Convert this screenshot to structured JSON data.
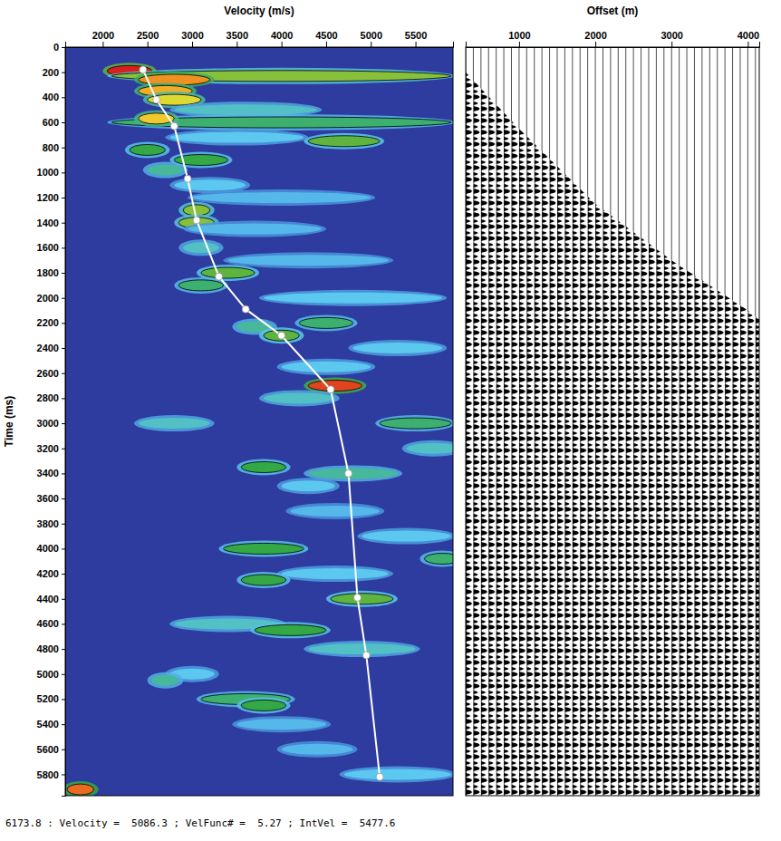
{
  "chart_data": [
    {
      "type": "heatmap",
      "x_label": "Velocity (m/s)",
      "y_label": "Time (ms)",
      "xlim": [
        1580,
        5920
      ],
      "xticks": [
        2000,
        2500,
        3000,
        3500,
        4000,
        4500,
        5000,
        5500
      ],
      "ylim": [
        0,
        5970
      ],
      "yticks": [
        0,
        200,
        400,
        600,
        800,
        1000,
        1200,
        1400,
        1600,
        1800,
        2000,
        2200,
        2400,
        2600,
        2800,
        3000,
        3200,
        3400,
        3600,
        3800,
        4000,
        4200,
        4400,
        4600,
        4800,
        5000,
        5200,
        5400,
        5600,
        5800
      ],
      "grid": false,
      "semblance_range": [
        0,
        1
      ],
      "cells": {
        "time": [
          190,
          230,
          260,
          350,
          420,
          500,
          600,
          570,
          750,
          720,
          820,
          900,
          980,
          1100,
          1200,
          1300,
          1400,
          1450,
          1600,
          1700,
          1800,
          1900,
          2000,
          2200,
          2230,
          2300,
          2400,
          2550,
          2700,
          2800,
          3000,
          3000,
          3200,
          3350,
          3400,
          3500,
          3700,
          3900,
          4000,
          4080,
          4200,
          4250,
          4400,
          4600,
          4650,
          4800,
          5000,
          5050,
          5200,
          5250,
          5400,
          5600,
          5800,
          5920
        ],
        "velocity": [
          2300,
          4000,
          2800,
          2700,
          2800,
          3600,
          4000,
          2600,
          4700,
          3500,
          2500,
          3100,
          2700,
          3200,
          4000,
          3050,
          3050,
          3700,
          3100,
          4300,
          3400,
          3100,
          4800,
          4500,
          3700,
          4000,
          5300,
          4500,
          4600,
          4200,
          2800,
          5500,
          5700,
          3800,
          4800,
          4300,
          4600,
          5400,
          3800,
          5800,
          4600,
          3800,
          4900,
          3400,
          4100,
          4900,
          3000,
          2700,
          3600,
          3800,
          4000,
          4400,
          5300,
          1750
        ],
        "span": [
          500,
          3800,
          800,
          600,
          600,
          1600,
          3800,
          400,
          800,
          1500,
          400,
          600,
          400,
          800,
          2000,
          300,
          400,
          1500,
          400,
          1800,
          600,
          500,
          2000,
          600,
          400,
          400,
          1000,
          1000,
          600,
          800,
          800,
          800,
          600,
          500,
          1000,
          600,
          1000,
          1000,
          900,
          400,
          1200,
          500,
          700,
          1200,
          800,
          1200,
          500,
          300,
          1000,
          500,
          1000,
          800,
          1200,
          300
        ],
        "semblance": [
          1.0,
          0.6,
          0.85,
          0.8,
          0.7,
          0.35,
          0.45,
          0.75,
          0.55,
          0.3,
          0.5,
          0.5,
          0.4,
          0.3,
          0.25,
          0.6,
          0.6,
          0.25,
          0.35,
          0.25,
          0.55,
          0.45,
          0.3,
          0.45,
          0.4,
          0.55,
          0.3,
          0.3,
          0.95,
          0.35,
          0.35,
          0.45,
          0.35,
          0.5,
          0.4,
          0.3,
          0.25,
          0.3,
          0.5,
          0.45,
          0.3,
          0.5,
          0.55,
          0.35,
          0.5,
          0.35,
          0.3,
          0.4,
          0.45,
          0.5,
          0.25,
          0.25,
          0.3,
          0.9
        ]
      },
      "picks": {
        "time": [
          180,
          420,
          630,
          1050,
          1380,
          1830,
          2090,
          2300,
          2730,
          3400,
          4390,
          4850,
          5820
        ],
        "velocity": [
          2450,
          2600,
          2800,
          2950,
          3050,
          3300,
          3600,
          4000,
          4550,
          4750,
          4850,
          4950,
          5100
        ],
        "color": "#ffffff",
        "marker": "circle"
      },
      "status": "6173.8 : Velocity =  5086.3 ; VelFunc# =  5.27 ; IntVel =  5477.6"
    },
    {
      "type": "gather",
      "x_label": "Offset (m)",
      "xlim": [
        300,
        4150
      ],
      "xticks": [
        1000,
        2000,
        3000,
        4000
      ],
      "ylim": [
        0,
        5970
      ],
      "tick_labels": "x",
      "traces": [
        300,
        400,
        500,
        600,
        700,
        800,
        900,
        1000,
        1100,
        1200,
        1300,
        1400,
        1500,
        1600,
        1700,
        1800,
        1900,
        2000,
        2100,
        2200,
        2300,
        2400,
        2500,
        2600,
        2700,
        2800,
        2900,
        3000,
        3100,
        3200,
        3300,
        3400,
        3500,
        3600,
        3700,
        3800,
        3900,
        4000,
        4100
      ],
      "mute": {
        "offset": [
          300,
          1000,
          2000,
          3000,
          4000,
          4150
        ],
        "time": [
          200,
          650,
          1250,
          1700,
          2100,
          2170
        ]
      }
    }
  ]
}
